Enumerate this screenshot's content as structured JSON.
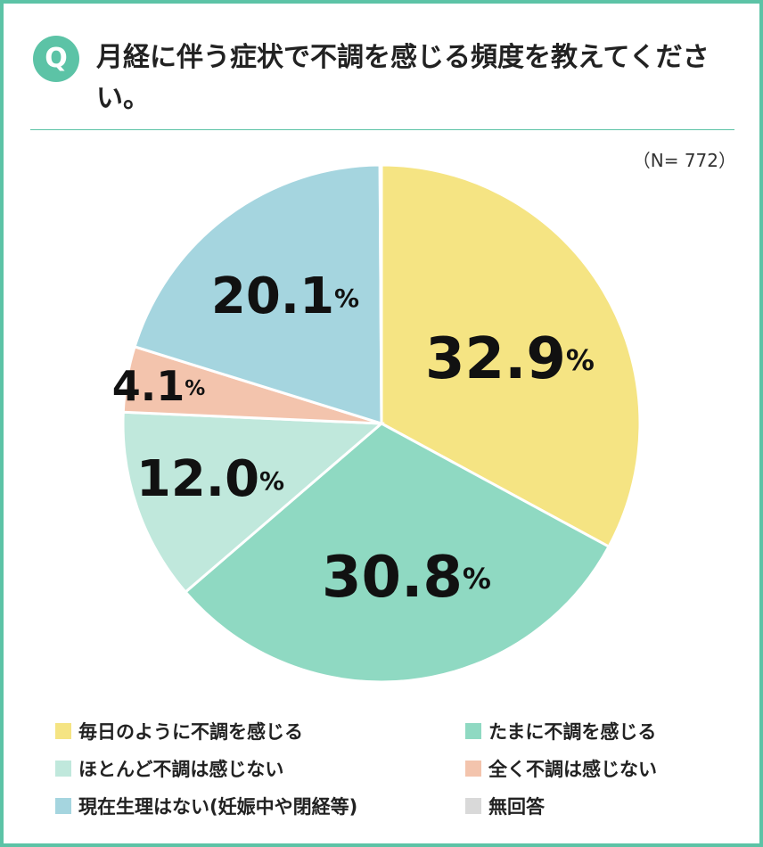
{
  "chart_data": {
    "type": "pie",
    "badge": "Q",
    "title": "月経に伴う症状で不調を感じる頻度を教えてください。",
    "note": "（N= 772）",
    "categories": [
      "毎日のように不調を感じる",
      "たまに不調を感じる",
      "ほとんど不調は感じない",
      "全く不調は感じない",
      "現在生理はない(妊娠中や閉経等)",
      "無回答"
    ],
    "values": [
      32.9,
      30.8,
      12.0,
      4.1,
      20.1,
      0.1
    ],
    "value_labels": [
      "32.9%",
      "30.8%",
      "12.0%",
      "4.1%",
      "20.1%",
      null
    ],
    "colors": [
      "#f5e483",
      "#8fd9c2",
      "#c0e8dc",
      "#f3c4ad",
      "#a5d5df",
      "#d9d9d9"
    ]
  }
}
